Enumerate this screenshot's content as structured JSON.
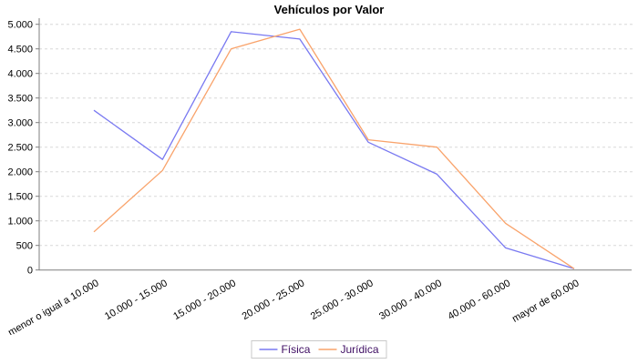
{
  "title": "Vehículos por Valor",
  "chart_data": {
    "type": "line",
    "title": "Vehículos por Valor",
    "categories": [
      "menor o igual a 10.000",
      "10.000 - 15.000",
      "15.000 - 20.000",
      "20.000 - 25.000",
      "25.000 - 30.000",
      "30.000 - 40.000",
      "40.000 - 60.000",
      "mayor de 60.000"
    ],
    "series": [
      {
        "name": "Física",
        "color": "#7979f1",
        "values": [
          3250,
          2250,
          4850,
          4700,
          2600,
          1950,
          450,
          25
        ]
      },
      {
        "name": "Jurídica",
        "color": "#f9a36b",
        "values": [
          775,
          2025,
          4500,
          4900,
          2650,
          2500,
          950,
          25
        ]
      }
    ],
    "xlabel": "",
    "ylabel": "",
    "ylim": [
      0,
      5000
    ],
    "y_tick_step": 500,
    "y_tick_labels": [
      "0",
      "500",
      "1.000",
      "1.500",
      "2.000",
      "2.500",
      "3.000",
      "3.500",
      "4.000",
      "4.500",
      "5.000"
    ],
    "grid": "horizontal-dashed",
    "legend_position": "bottom",
    "x_label_rotation_deg": -30
  },
  "legend": {
    "items": [
      {
        "label": "Física"
      },
      {
        "label": "Jurídica"
      }
    ]
  },
  "colors": {
    "series_fisica": "#7979f1",
    "series_juridica": "#f9a36b",
    "grid": "#d8d8d8",
    "axis": "#7f7f7f",
    "tick_text": "#000000",
    "title_text": "#000000",
    "legend_border": "#c9c9c9",
    "legend_text": "#3f0e63",
    "background": "#ffffff"
  }
}
